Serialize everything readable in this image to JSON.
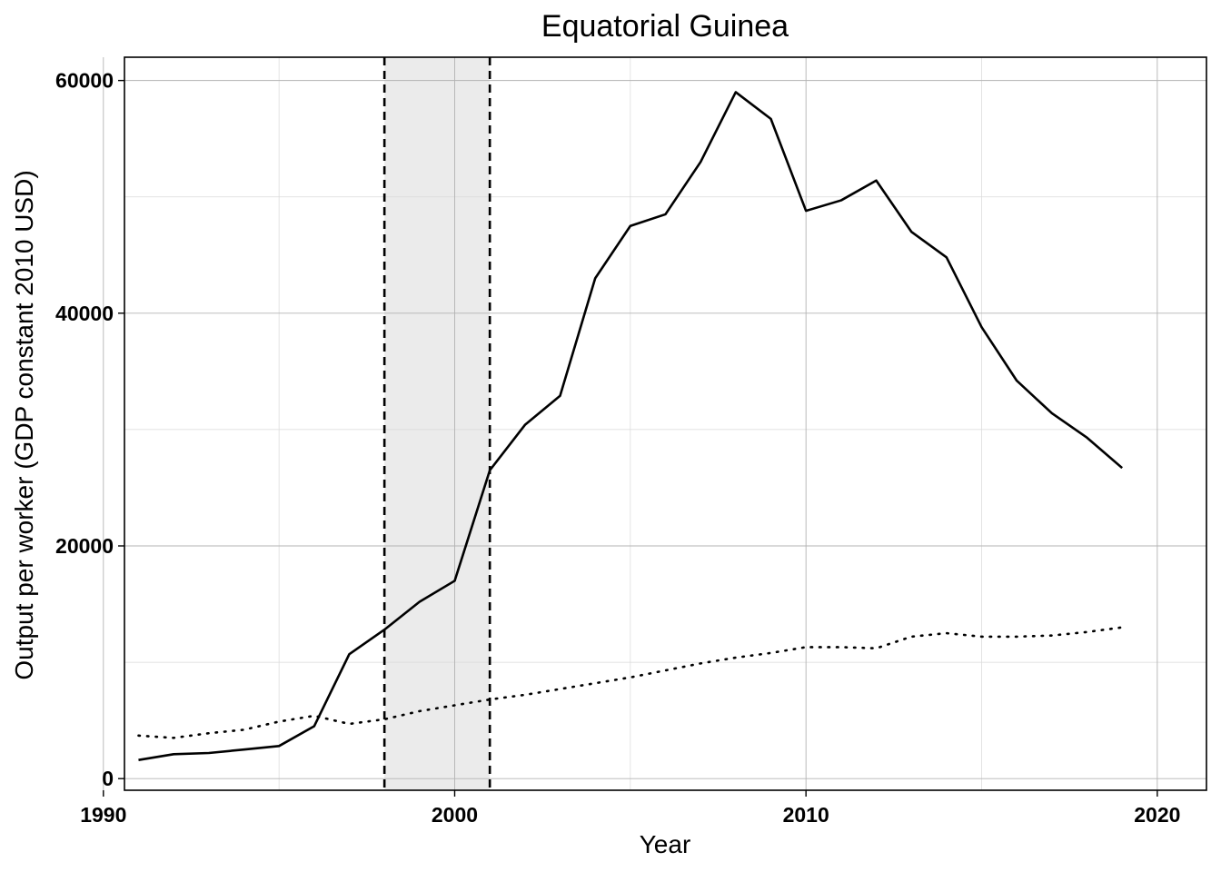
{
  "chart_data": {
    "type": "line",
    "title": "Equatorial Guinea",
    "xlabel": "Year",
    "ylabel": "Output per worker (GDP constant 2010 USD)",
    "xlim": [
      1990.6,
      2021.4
    ],
    "ylim": [
      -1000,
      62000
    ],
    "x_ticks": [
      1990,
      2000,
      2010,
      2020
    ],
    "x_tick_labels": [
      "1990",
      "2000",
      "2010",
      "2020"
    ],
    "y_ticks": [
      0,
      20000,
      40000,
      60000
    ],
    "y_tick_labels": [
      "0",
      "20000",
      "40000",
      "60000"
    ],
    "grid": true,
    "legend": "none",
    "shaded_period": {
      "start": 1998,
      "end": 2001
    },
    "x": [
      1991,
      1992,
      1993,
      1994,
      1995,
      1996,
      1997,
      1998,
      1999,
      2000,
      2001,
      2002,
      2003,
      2004,
      2005,
      2006,
      2007,
      2008,
      2009,
      2010,
      2011,
      2012,
      2013,
      2014,
      2015,
      2016,
      2017,
      2018,
      2019
    ],
    "series": [
      {
        "style": "solid",
        "color": "#000000",
        "values": [
          1600,
          2100,
          2200,
          2500,
          2800,
          4500,
          10700,
          12800,
          15200,
          17000,
          26500,
          30400,
          32900,
          43000,
          47500,
          48500,
          53000,
          59000,
          56700,
          48800,
          49700,
          51400,
          47000,
          44800,
          38800,
          34200,
          31400,
          29300,
          26700
        ]
      },
      {
        "style": "dotted",
        "color": "#000000",
        "values": [
          3700,
          3500,
          3900,
          4200,
          4900,
          5400,
          4700,
          5100,
          5800,
          6300,
          6800,
          7200,
          7700,
          8200,
          8700,
          9300,
          9900,
          10400,
          10800,
          11300,
          11300,
          11200,
          12200,
          12500,
          12200,
          12200,
          12300,
          12600,
          13000
        ]
      }
    ]
  }
}
